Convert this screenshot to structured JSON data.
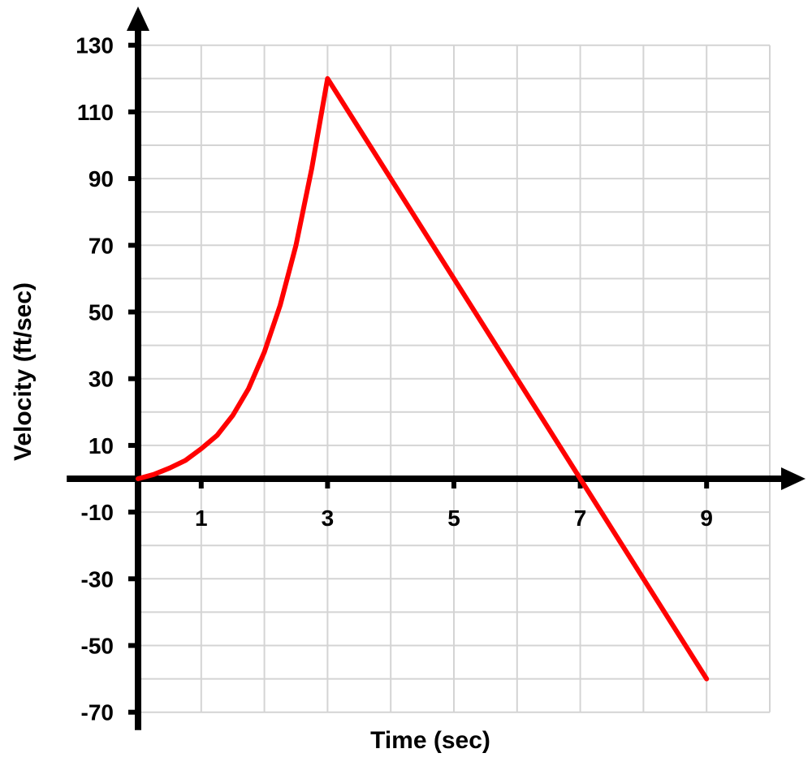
{
  "chart_data": {
    "type": "line",
    "xlabel": "Time (sec)",
    "ylabel": "Velocity (ft/sec)",
    "xlim": [
      0,
      10
    ],
    "ylim": [
      -70,
      130
    ],
    "x_ticks": [
      1,
      3,
      5,
      7,
      9
    ],
    "x_tick_labels": [
      "1",
      "3",
      "5",
      "7",
      "9"
    ],
    "y_ticks": [
      130,
      110,
      90,
      70,
      50,
      30,
      10,
      -10,
      -30,
      -50,
      -70
    ],
    "y_tick_labels": [
      "130",
      "110",
      "90",
      "70",
      "50",
      "30",
      "10",
      "-10",
      "-30",
      "-50",
      "-70"
    ],
    "grid": true,
    "series": [
      {
        "color": "#ff0000",
        "x": [
          0,
          0.25,
          0.5,
          0.75,
          1,
          1.25,
          1.5,
          1.75,
          2,
          2.25,
          2.5,
          2.75,
          3,
          5,
          7,
          9
        ],
        "values": [
          0,
          1.3,
          3.2,
          5.5,
          9,
          13,
          19,
          27,
          38,
          52,
          70,
          93,
          120,
          60,
          0,
          -60
        ]
      }
    ]
  }
}
